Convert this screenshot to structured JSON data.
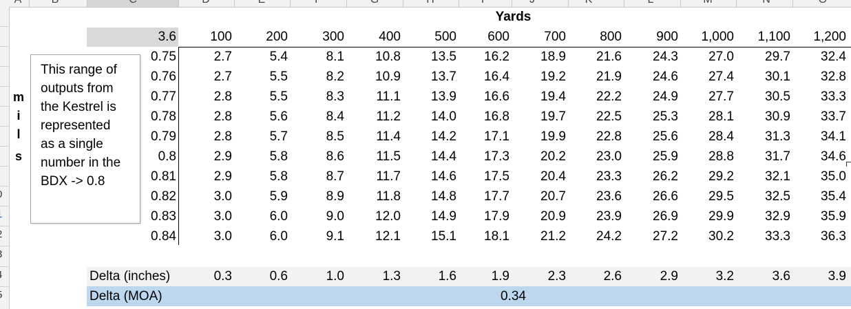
{
  "column_letters": [
    "A",
    "B",
    "C",
    "D",
    "E",
    "F",
    "G",
    "H",
    "I",
    "J",
    "K",
    "L",
    "M",
    "N",
    "O"
  ],
  "row_numbers": [
    "0",
    "1",
    "2",
    "3",
    "4",
    "5"
  ],
  "table": {
    "title": "Yards",
    "corner_value": "3.6",
    "yards": [
      "100",
      "200",
      "300",
      "400",
      "500",
      "600",
      "700",
      "800",
      "900",
      "1,000",
      "1,100",
      "1,200"
    ],
    "rows": [
      {
        "mil": "0.75",
        "values": [
          "2.7",
          "5.4",
          "8.1",
          "10.8",
          "13.5",
          "16.2",
          "18.9",
          "21.6",
          "24.3",
          "27.0",
          "29.7",
          "32.4"
        ]
      },
      {
        "mil": "0.76",
        "values": [
          "2.7",
          "5.5",
          "8.2",
          "10.9",
          "13.7",
          "16.4",
          "19.2",
          "21.9",
          "24.6",
          "27.4",
          "30.1",
          "32.8"
        ]
      },
      {
        "mil": "0.77",
        "values": [
          "2.8",
          "5.5",
          "8.3",
          "11.1",
          "13.9",
          "16.6",
          "19.4",
          "22.2",
          "24.9",
          "27.7",
          "30.5",
          "33.3"
        ]
      },
      {
        "mil": "0.78",
        "values": [
          "2.8",
          "5.6",
          "8.4",
          "11.2",
          "14.0",
          "16.8",
          "19.7",
          "22.5",
          "25.3",
          "28.1",
          "30.9",
          "33.7"
        ]
      },
      {
        "mil": "0.79",
        "values": [
          "2.8",
          "5.7",
          "8.5",
          "11.4",
          "14.2",
          "17.1",
          "19.9",
          "22.8",
          "25.6",
          "28.4",
          "31.3",
          "34.1"
        ]
      },
      {
        "mil": "0.8",
        "values": [
          "2.9",
          "5.8",
          "8.6",
          "11.5",
          "14.4",
          "17.3",
          "20.2",
          "23.0",
          "25.9",
          "28.8",
          "31.7",
          "34.6"
        ]
      },
      {
        "mil": "0.81",
        "values": [
          "2.9",
          "5.8",
          "8.7",
          "11.7",
          "14.6",
          "17.5",
          "20.4",
          "23.3",
          "26.2",
          "29.2",
          "32.1",
          "35.0"
        ]
      },
      {
        "mil": "0.82",
        "values": [
          "3.0",
          "5.9",
          "8.9",
          "11.8",
          "14.8",
          "17.7",
          "20.7",
          "23.6",
          "26.6",
          "29.5",
          "32.5",
          "35.4"
        ]
      },
      {
        "mil": "0.83",
        "values": [
          "3.0",
          "6.0",
          "9.0",
          "12.0",
          "14.9",
          "17.9",
          "20.9",
          "23.9",
          "26.9",
          "29.9",
          "32.9",
          "35.9"
        ]
      },
      {
        "mil": "0.84",
        "values": [
          "3.0",
          "6.0",
          "9.1",
          "12.1",
          "15.1",
          "18.1",
          "21.2",
          "24.2",
          "27.2",
          "30.2",
          "33.3",
          "36.3"
        ]
      }
    ]
  },
  "mils_label": [
    "m",
    "i",
    "l",
    "s"
  ],
  "note": {
    "lines": [
      "This range of",
      "outputs from",
      "the Kestrel is",
      "represented",
      "as a single",
      "number in the",
      "BDX -> 0.8"
    ]
  },
  "delta_inches": {
    "label": "Delta (inches)",
    "values": [
      "0.3",
      "0.6",
      "1.0",
      "1.3",
      "1.6",
      "1.9",
      "2.3",
      "2.6",
      "2.9",
      "3.2",
      "3.6",
      "3.9"
    ]
  },
  "delta_moa": {
    "label": "Delta (MOA)",
    "value": "0.34"
  },
  "colors": {
    "header_bg": "#f2f2f2",
    "selected_col_accent": "#217346",
    "corner_cell_bg": "#d9d9d9",
    "delta_moa_bg": "#bdd7ee",
    "selected_row_num": "#1f5fbf"
  }
}
